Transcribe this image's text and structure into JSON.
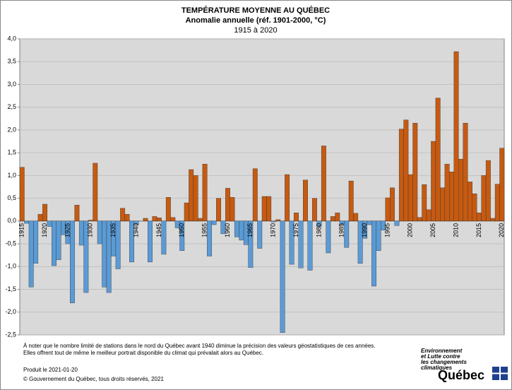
{
  "chart_data": {
    "type": "bar",
    "title": "TEMPÉRATURE MOYENNE AU QUÉBEC",
    "subtitle": "Anomalie annuelle (réf. 1901-2000, °C)",
    "period": "1915 à 2020",
    "categories": [
      "1915",
      null,
      null,
      null,
      null,
      "1920",
      null,
      null,
      null,
      null,
      "1925",
      null,
      null,
      null,
      null,
      "1930",
      null,
      null,
      null,
      null,
      "1935",
      null,
      null,
      null,
      null,
      "1940",
      null,
      null,
      null,
      null,
      "1945",
      null,
      null,
      null,
      null,
      "1950",
      null,
      null,
      null,
      null,
      "1955",
      null,
      null,
      null,
      null,
      "1960",
      null,
      null,
      null,
      null,
      "1965",
      null,
      null,
      null,
      null,
      "1970",
      null,
      null,
      null,
      null,
      "1975",
      null,
      null,
      null,
      null,
      "1980",
      null,
      null,
      null,
      null,
      "1985",
      null,
      null,
      null,
      null,
      "1990",
      null,
      null,
      null,
      null,
      "1995",
      null,
      null,
      null,
      null,
      "2000",
      null,
      null,
      null,
      null,
      "2005",
      null,
      null,
      null,
      null,
      "2010",
      null,
      null,
      null,
      null,
      "2015",
      null,
      null,
      null,
      null,
      "2020"
    ],
    "values": [
      1.18,
      -0.05,
      -1.45,
      -0.93,
      0.15,
      0.37,
      -0.12,
      -0.98,
      -0.85,
      -0.3,
      -0.5,
      -1.8,
      0.35,
      -0.53,
      -1.57,
      0.02,
      1.27,
      -0.5,
      -1.45,
      -1.57,
      -0.77,
      -1.05,
      0.28,
      0.15,
      -0.9,
      -0.08,
      0.0,
      0.06,
      -0.9,
      0.1,
      0.07,
      -0.73,
      0.52,
      0.08,
      -0.15,
      -0.65,
      0.4,
      1.13,
      1.0,
      0.06,
      1.25,
      -0.77,
      -0.08,
      0.5,
      -0.28,
      0.72,
      0.52,
      -0.35,
      -0.42,
      -0.52,
      -1.02,
      1.15,
      -0.6,
      0.54,
      0.54,
      -0.02,
      0.03,
      -2.45,
      1.02,
      -0.95,
      0.18,
      -1.03,
      0.9,
      -1.08,
      0.5,
      -0.12,
      1.65,
      -0.7,
      0.1,
      0.18,
      -0.08,
      -0.58,
      0.88,
      0.17,
      -0.93,
      -0.38,
      -0.08,
      -1.43,
      -0.65,
      -0.2,
      0.51,
      0.73,
      -0.1,
      2.02,
      2.22,
      1.02,
      2.15,
      0.08,
      0.8,
      0.25,
      1.75,
      2.7,
      0.73,
      1.25,
      1.08,
      3.72,
      1.36,
      2.15,
      0.86,
      0.6,
      0.18,
      1.0,
      1.33,
      0.06,
      0.81,
      1.6
    ],
    "positive_color": "#c65a11",
    "negative_color": "#5b9bd5",
    "ylim": [
      -2.5,
      4.0
    ],
    "yticks": [
      {
        "value": 4.0,
        "label": "4,0"
      },
      {
        "value": 3.5,
        "label": "3,5"
      },
      {
        "value": 3.0,
        "label": "3,0"
      },
      {
        "value": 2.5,
        "label": "2,5"
      },
      {
        "value": 2.0,
        "label": "2,0"
      },
      {
        "value": 1.5,
        "label": "1,5"
      },
      {
        "value": 1.0,
        "label": "1,0"
      },
      {
        "value": 0.5,
        "label": "0,5"
      },
      {
        "value": 0.0,
        "label": "0,0"
      },
      {
        "value": -0.5,
        "label": "-0,5"
      },
      {
        "value": -1.0,
        "label": "-1,0"
      },
      {
        "value": -1.5,
        "label": "-1,5"
      },
      {
        "value": -2.0,
        "label": "-2,0"
      },
      {
        "value": -2.5,
        "label": "-2,5"
      }
    ],
    "grid": true
  },
  "footer": {
    "notes": [
      "À noter que le nombre limité de stations dans le nord du Québec avant 1940 diminue la précision des valeurs géostatistiques de ces années.",
      "Elles offrent tout de même le meilleur portrait disponible du climat qui prévalait alors au Québec."
    ],
    "produced": "Produit le 2021-01-20",
    "copyright": "© Gouvernement du Québec, tous droits réservés, 2021",
    "logo_lines": [
      "Environnement",
      "et Lutte contre",
      "les changements",
      "climatiques"
    ],
    "logo_name": "Québec"
  }
}
